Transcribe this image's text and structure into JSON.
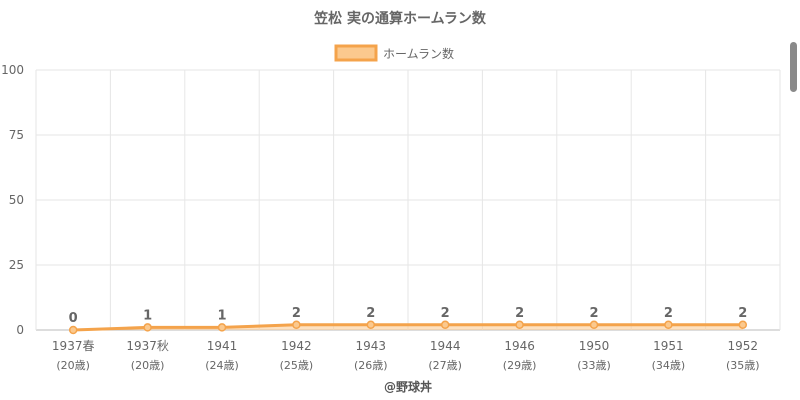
{
  "chart_data": {
    "type": "line",
    "title": "笠松 実の通算ホームラン数",
    "legend": {
      "label": "ホームラン数",
      "placement": "top-center"
    },
    "categories": [
      "1937春",
      "1937秋",
      "1941",
      "1942",
      "1943",
      "1944",
      "1946",
      "1950",
      "1951",
      "1952"
    ],
    "ages": [
      "(20歳)",
      "(20歳)",
      "(24歳)",
      "(25歳)",
      "(26歳)",
      "(27歳)",
      "(29歳)",
      "(33歳)",
      "(34歳)",
      "(35歳)"
    ],
    "series": [
      {
        "name": "ホームラン数",
        "values": [
          0,
          1,
          1,
          2,
          2,
          2,
          2,
          2,
          2,
          2
        ]
      }
    ],
    "data_labels": [
      "0",
      "1",
      "1",
      "2",
      "2",
      "2",
      "2",
      "2",
      "2",
      "2"
    ],
    "ylim": [
      0,
      100
    ],
    "y_ticks": [
      0,
      25,
      50,
      75,
      100
    ],
    "y_tick_labels": [
      "0",
      "25",
      "50",
      "75",
      "100"
    ],
    "grid": true,
    "line_color": "#f4a34b",
    "fill_color": "#fbc98e",
    "source": "@野球丼"
  }
}
